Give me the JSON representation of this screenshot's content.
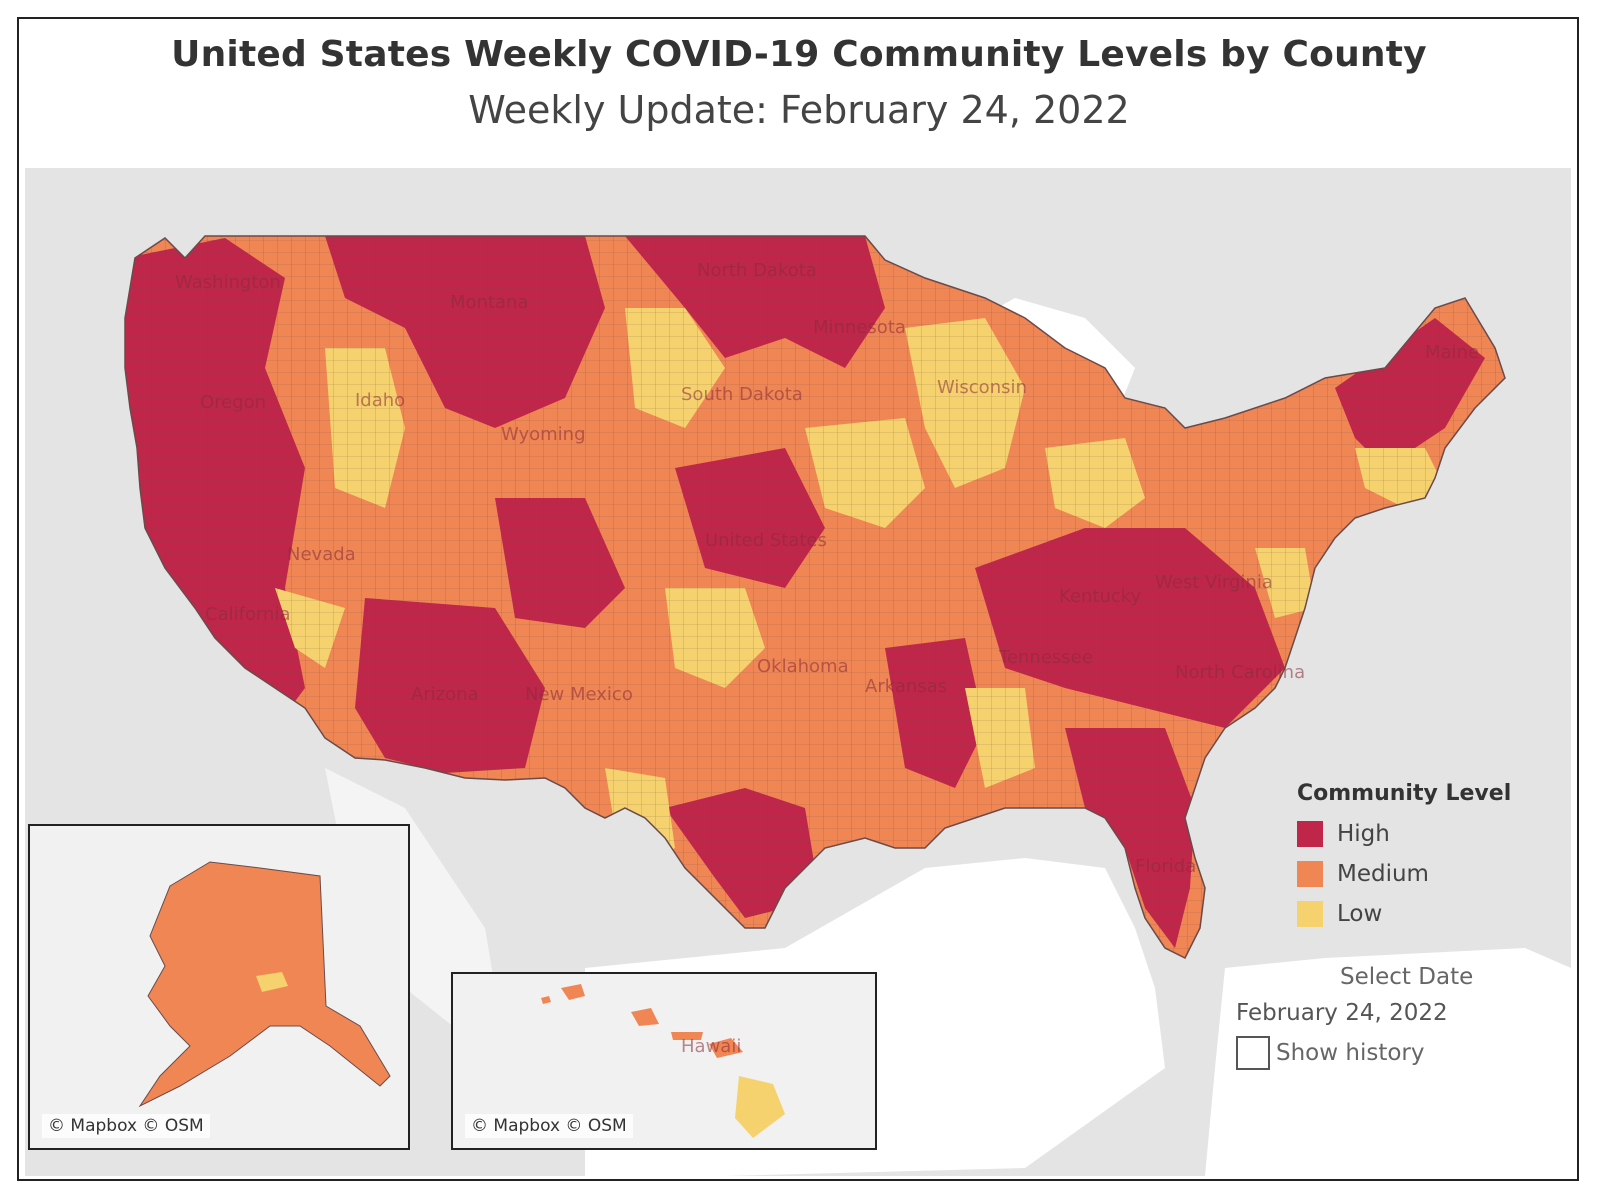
{
  "title": "United States Weekly COVID-19 Community Levels by County",
  "subtitle": "Weekly Update: February 24, 2022",
  "colors": {
    "high": "#c0264a",
    "medium": "#ef8654",
    "low": "#f5d26e",
    "land": "#e6e6e6",
    "water": "#ffffff",
    "border": "#6b4a4a"
  },
  "state_labels": [
    "Washington",
    "Montana",
    "North Dakota",
    "Minnesota",
    "Oregon",
    "Idaho",
    "South Dakota",
    "Wyoming",
    "Wisconsin",
    "Maine",
    "Nevada",
    "United States",
    "California",
    "Arizona",
    "New Mexico",
    "Oklahoma",
    "Arkansas",
    "Kentucky",
    "West Virginia",
    "Tennessee",
    "North Carolina",
    "Florida",
    "Hawaii"
  ],
  "legend": {
    "title": "Community Level",
    "items": [
      {
        "label": "High",
        "color": "#c0264a"
      },
      {
        "label": "Medium",
        "color": "#ef8654"
      },
      {
        "label": "Low",
        "color": "#f5d26e"
      }
    ]
  },
  "date_selector": {
    "label": "Select Date",
    "value": "February 24, 2022",
    "show_history_label": "Show history"
  },
  "insets": {
    "alaska": {
      "credit": "© Mapbox © OSM"
    },
    "hawaii": {
      "credit": "© Mapbox © OSM",
      "label": "Hawaii"
    }
  }
}
